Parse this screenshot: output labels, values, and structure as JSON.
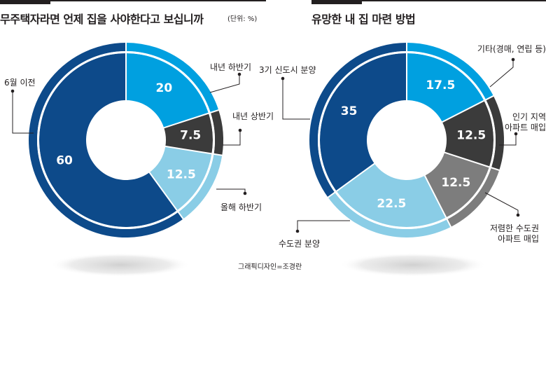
{
  "chart_data": [
    {
      "type": "pie",
      "title": "무주택자라면 언제 집을 사야한다고 보십니까",
      "unit": "(단위: %)",
      "categories": [
        "내년 하반기",
        "내년 상반기",
        "올해 하반기",
        "6월 이전"
      ],
      "values": [
        20,
        7.5,
        12.5,
        60
      ],
      "value_labels": [
        "20",
        "7.5",
        "12.5",
        "60"
      ],
      "colors": [
        "#00a0e0",
        "#3b3b3b",
        "#8acde6",
        "#0d4a8a"
      ],
      "text_colors": [
        "#ffffff",
        "#ffffff",
        "#ffffff",
        "#ffffff"
      ]
    },
    {
      "type": "pie",
      "title": "유망한 내 집 마련 방법",
      "categories": [
        "기타(경매, 연립 등)",
        "인기 지역 아파트 매입",
        "저렴한 수도권 아파트 매입",
        "수도권 분양",
        "3기 신도시 분양"
      ],
      "values": [
        17.5,
        12.5,
        12.5,
        22.5,
        35
      ],
      "value_labels": [
        "17.5",
        "12.5",
        "12.5",
        "22.5",
        "35"
      ],
      "colors": [
        "#00a0e0",
        "#3b3b3b",
        "#7d7d7d",
        "#8acde6",
        "#0d4a8a"
      ],
      "text_colors": [
        "#ffffff",
        "#ffffff",
        "#ffffff",
        "#ffffff",
        "#ffffff"
      ]
    }
  ],
  "credit": "그래픽디자인=조경란"
}
